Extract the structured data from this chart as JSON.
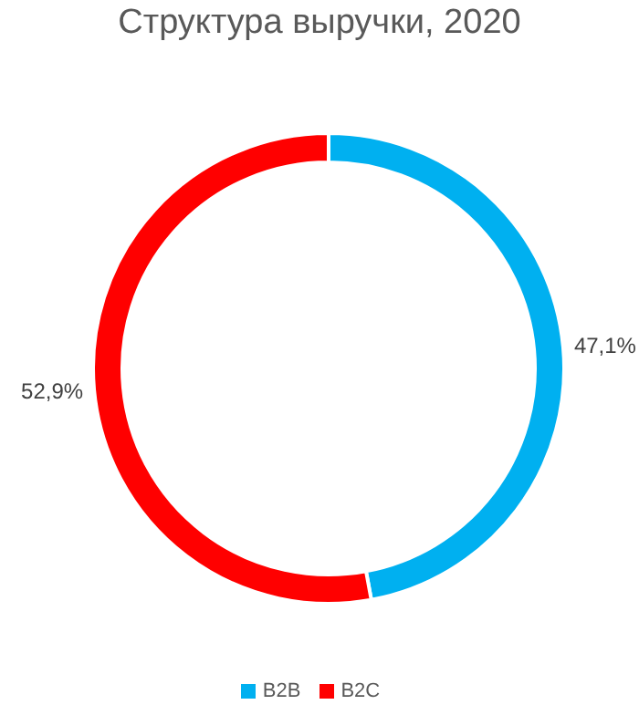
{
  "chart_data": {
    "type": "donut",
    "title": "Структура выручки, 2020",
    "categories": [
      "B2B",
      "B2C"
    ],
    "values": [
      47.1,
      52.9
    ],
    "value_labels": [
      "47,1%",
      "52,9%"
    ],
    "colors": [
      "#00b0f0",
      "#ff0000"
    ],
    "legend": "bottom"
  }
}
